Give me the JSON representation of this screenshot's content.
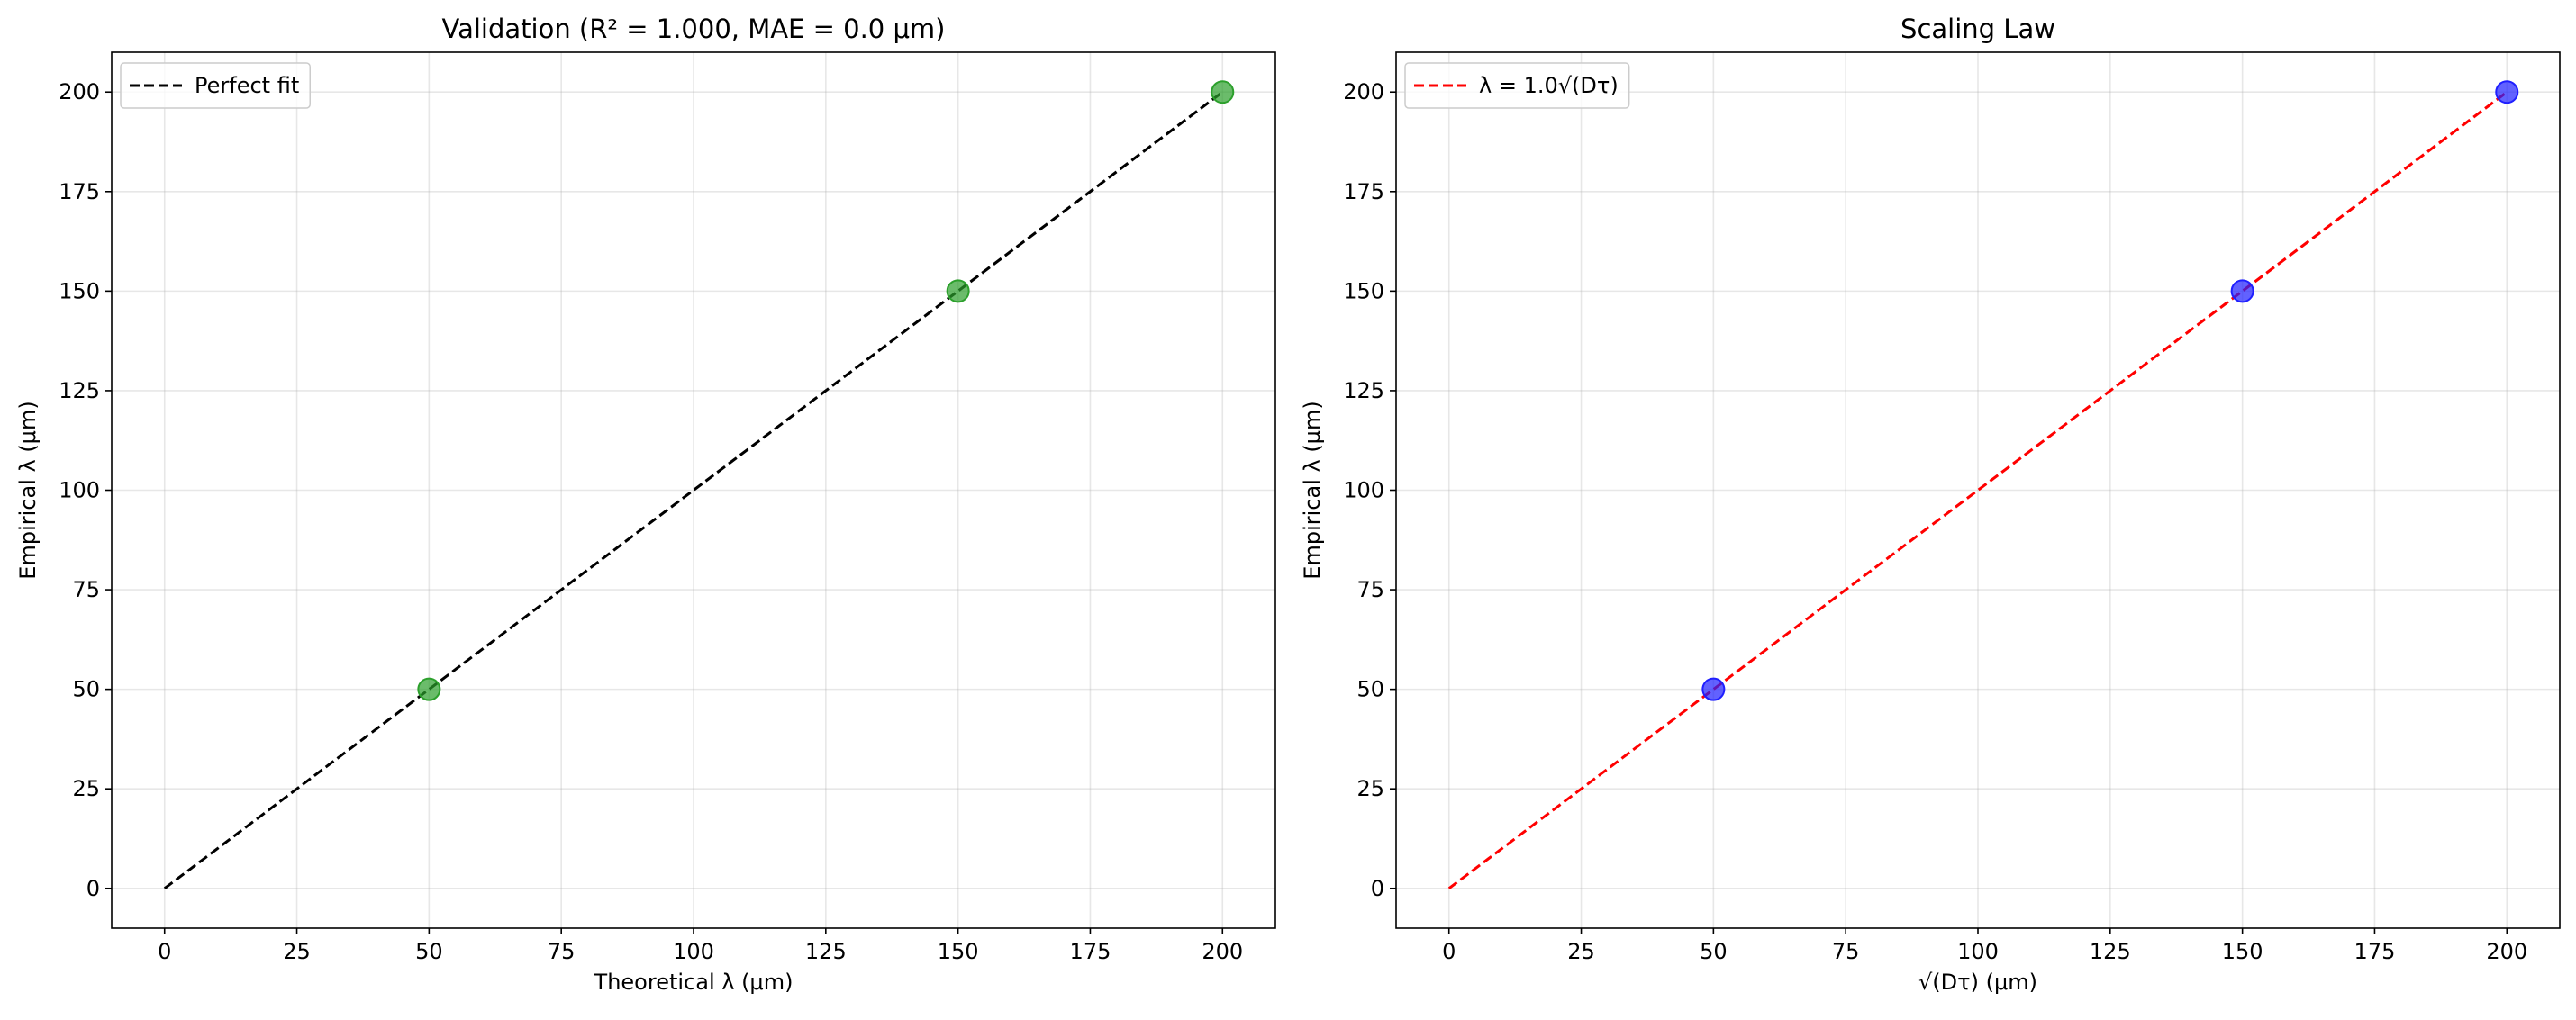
{
  "chart_data": [
    {
      "type": "scatter",
      "title": "Validation (R² = 1.000, MAE = 0.0 μm)",
      "xlabel": "Theoretical λ (μm)",
      "ylabel": "Empirical λ (μm)",
      "xlim": [
        -10,
        210
      ],
      "ylim": [
        -10,
        210
      ],
      "xticks": [
        0,
        25,
        50,
        75,
        100,
        125,
        150,
        175,
        200
      ],
      "yticks": [
        0,
        25,
        50,
        75,
        100,
        125,
        150,
        175,
        200
      ],
      "grid": true,
      "legend_position": "top-left",
      "points": {
        "x": [
          50,
          150,
          200
        ],
        "y": [
          50,
          150,
          200
        ],
        "color": "#2ca02c"
      },
      "line": {
        "name": "Perfect fit",
        "x": [
          0,
          200
        ],
        "y": [
          0,
          200
        ],
        "color": "#000000",
        "style": "dashed"
      }
    },
    {
      "type": "scatter",
      "title": "Scaling Law",
      "xlabel": "√(Dτ) (μm)",
      "ylabel": "Empirical λ (μm)",
      "xlim": [
        -10,
        210
      ],
      "ylim": [
        -10,
        210
      ],
      "xticks": [
        0,
        25,
        50,
        75,
        100,
        125,
        150,
        175,
        200
      ],
      "yticks": [
        0,
        25,
        50,
        75,
        100,
        125,
        150,
        175,
        200
      ],
      "grid": true,
      "legend_position": "top-left",
      "points": {
        "x": [
          50,
          150,
          200
        ],
        "y": [
          50,
          150,
          200
        ],
        "color": "#1f1fff"
      },
      "line": {
        "name": "λ = 1.0√(Dτ)",
        "x": [
          0,
          200
        ],
        "y": [
          0,
          200
        ],
        "color": "#ff0000",
        "style": "dashed"
      }
    }
  ]
}
